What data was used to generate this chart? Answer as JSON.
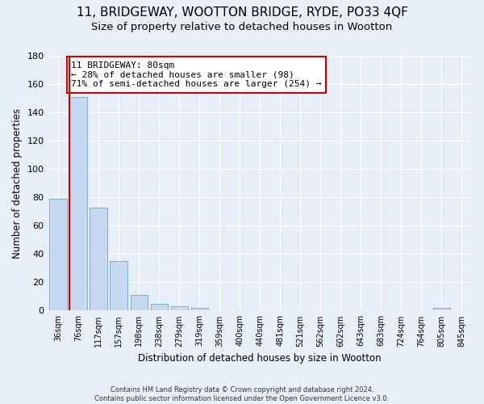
{
  "title1": "11, BRIDGEWAY, WOOTTON BRIDGE, RYDE, PO33 4QF",
  "title2": "Size of property relative to detached houses in Wootton",
  "xlabel": "Distribution of detached houses by size in Wootton",
  "ylabel": "Number of detached properties",
  "categories": [
    "36sqm",
    "76sqm",
    "117sqm",
    "157sqm",
    "198sqm",
    "238sqm",
    "279sqm",
    "319sqm",
    "359sqm",
    "400sqm",
    "440sqm",
    "481sqm",
    "521sqm",
    "562sqm",
    "602sqm",
    "643sqm",
    "683sqm",
    "724sqm",
    "764sqm",
    "805sqm",
    "845sqm"
  ],
  "values": [
    79,
    151,
    73,
    35,
    11,
    5,
    3,
    2,
    0,
    0,
    0,
    0,
    0,
    0,
    0,
    0,
    0,
    0,
    0,
    2,
    0
  ],
  "bar_color": "#c5d9f0",
  "bar_edge_color": "#7bafd4",
  "vline_color": "#cc0000",
  "annotation_text": "11 BRIDGEWAY: 80sqm\n← 28% of detached houses are smaller (98)\n71% of semi-detached houses are larger (254) →",
  "annotation_box_color": "#ffffff",
  "annotation_box_edge": "#cc0000",
  "ylim": [
    0,
    180
  ],
  "yticks": [
    0,
    20,
    40,
    60,
    80,
    100,
    120,
    140,
    160,
    180
  ],
  "footer1": "Contains HM Land Registry data © Crown copyright and database right 2024.",
  "footer2": "Contains public sector information licensed under the Open Government Licence v3.0.",
  "bg_color": "#e8eef8",
  "plot_bg_color": "#e8eef8",
  "grid_color": "#ffffff",
  "title1_fontsize": 11,
  "title2_fontsize": 9.5
}
